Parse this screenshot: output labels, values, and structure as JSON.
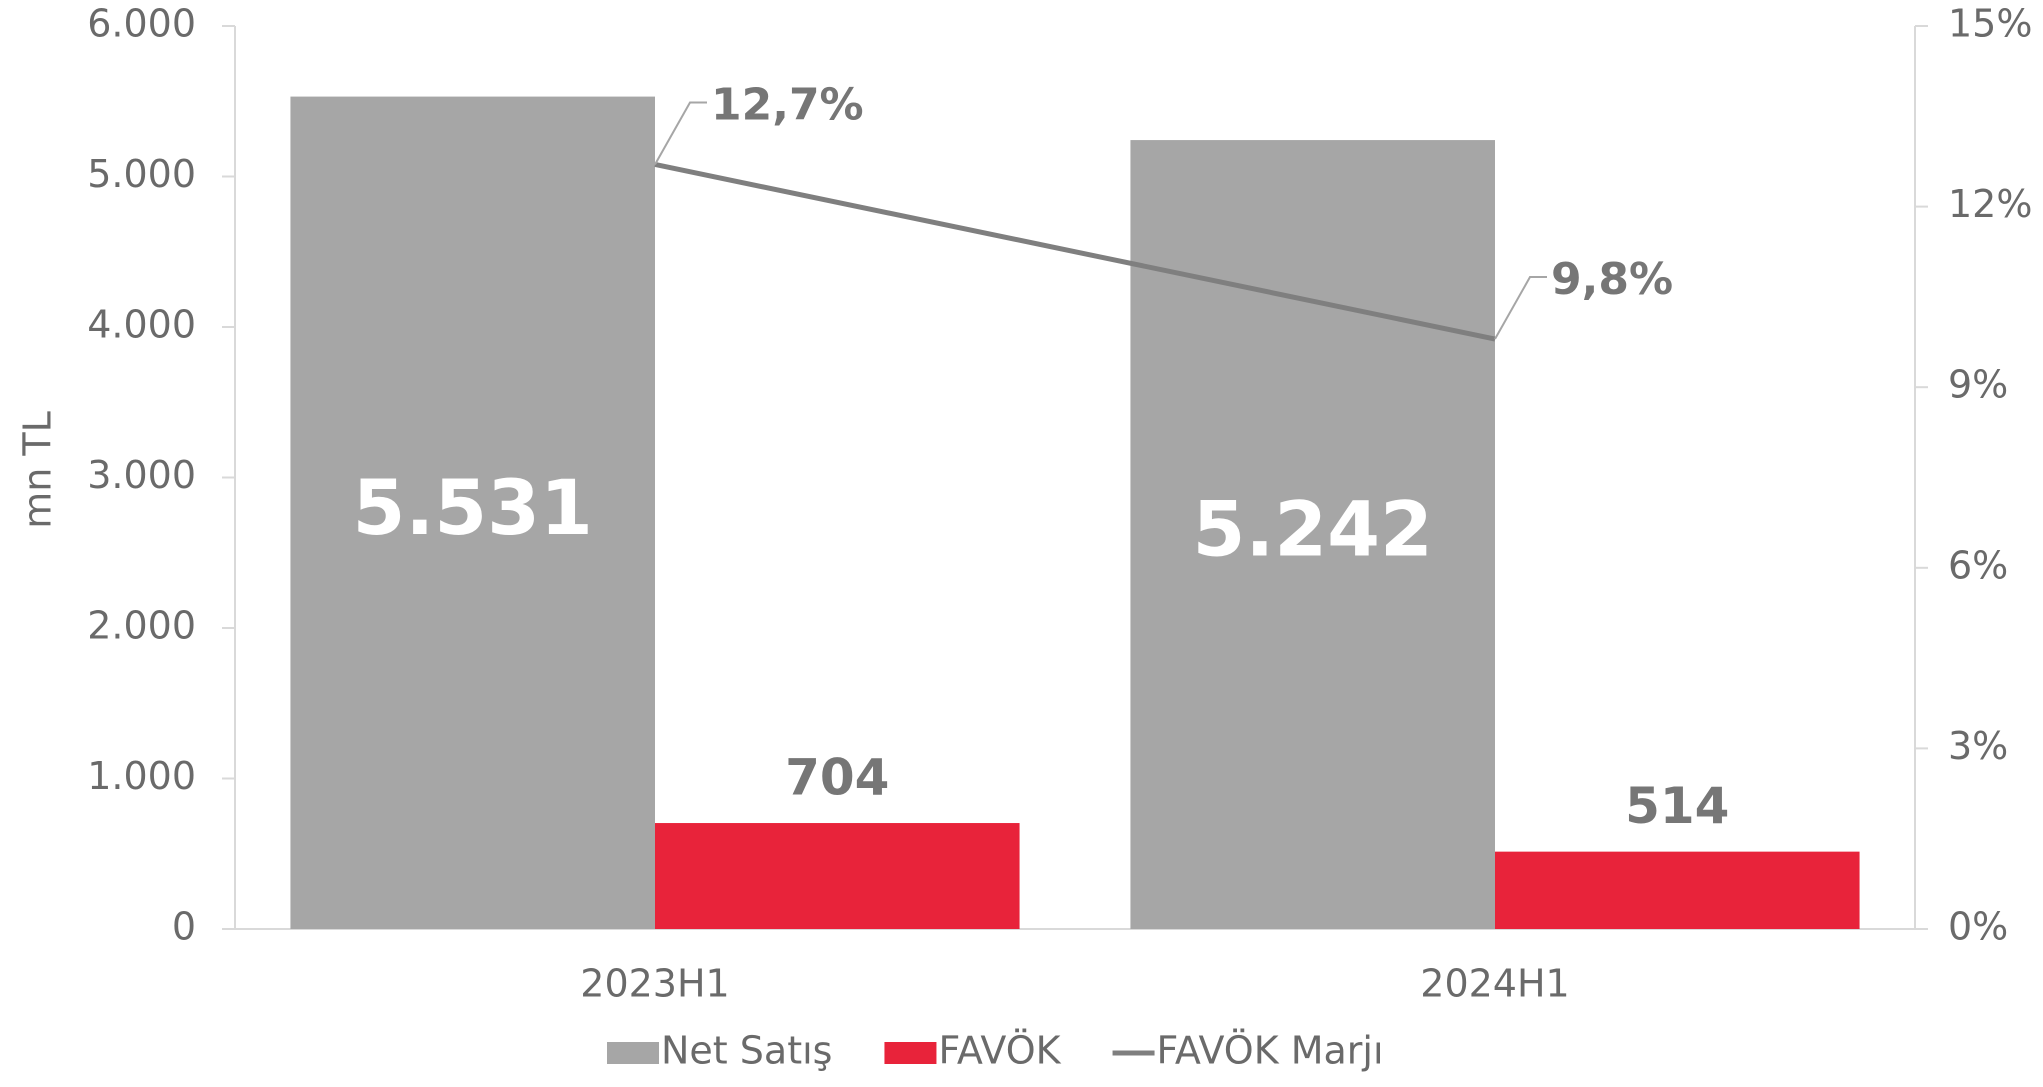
{
  "chart_data": {
    "type": "bar",
    "categories": [
      "2023H1",
      "2024H1"
    ],
    "series": [
      {
        "name": "Net Satış",
        "color": "#a6a6a6",
        "values": [
          5531,
          5242
        ],
        "value_labels": [
          "5.531",
          "5.242"
        ]
      },
      {
        "name": "FAVÖK",
        "color": "#e8233a",
        "values": [
          704,
          514
        ]
      },
      {
        "name": "FAVÖK Marjı",
        "type": "line",
        "axis": "y2",
        "color": "#7f7f7f",
        "values": [
          12.7,
          9.8
        ],
        "value_labels": [
          "12,7%",
          "9,8%"
        ]
      }
    ],
    "y_label": "mn TL",
    "ylim": [
      0,
      6000
    ],
    "yticks": [
      0,
      {
        "value": 1000,
        "label": "1.000"
      },
      {
        "value": 2000,
        "label": "2.000"
      },
      {
        "value": 3000,
        "label": "3.000"
      },
      {
        "value": 4000,
        "label": "4.000"
      },
      {
        "value": 5000,
        "label": "5.000"
      },
      {
        "value": 6000,
        "label": "6.000"
      }
    ],
    "y2lim": [
      0,
      15
    ],
    "y2ticks": [
      {
        "value": 0,
        "label": "0%"
      },
      {
        "value": 3,
        "label": "3%"
      },
      {
        "value": 6,
        "label": "6%"
      },
      {
        "value": 9,
        "label": "9%"
      },
      {
        "value": 12,
        "label": "12%"
      },
      {
        "value": 15,
        "label": "15%"
      }
    ],
    "legend": "bottom"
  }
}
